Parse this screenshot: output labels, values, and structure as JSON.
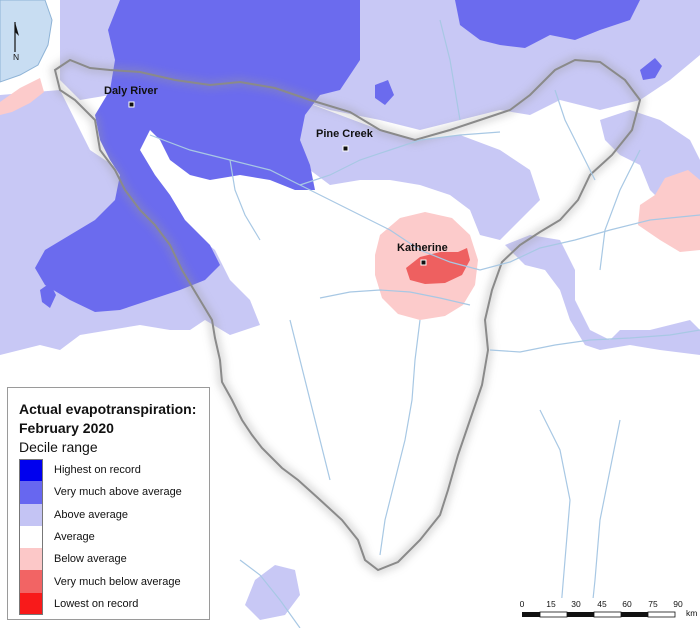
{
  "map": {
    "towns": [
      {
        "name": "Daly River"
      },
      {
        "name": "Pine Creek"
      },
      {
        "name": "Katherine"
      }
    ],
    "north_arrow_label": "N"
  },
  "legend": {
    "title_line1": "Actual evapotranspiration:",
    "title_line2": "February 2020",
    "subtitle": "Decile range",
    "items": [
      {
        "label": "Highest on record",
        "color": "#0000ee"
      },
      {
        "label": "Very much above average",
        "color": "#6767f0"
      },
      {
        "label": "Above average",
        "color": "#c4c4f4"
      },
      {
        "label": "Average",
        "color": "#ffffff"
      },
      {
        "label": "Below average",
        "color": "#fcc8c8"
      },
      {
        "label": "Very much below average",
        "color": "#f26464"
      },
      {
        "label": "Lowest on record",
        "color": "#f81a1a"
      }
    ]
  },
  "scalebar": {
    "ticks": [
      "0",
      "15",
      "30",
      "45",
      "60",
      "75",
      "90"
    ],
    "unit": "km"
  },
  "colors": {
    "above": "#c8c8f5",
    "very_above": "#6b6bee",
    "below": "#fccbcb",
    "very_below": "#ee6060",
    "water": "#c8ddf2",
    "river": "#a8c8e4",
    "boundary": "#8a8a8a"
  }
}
